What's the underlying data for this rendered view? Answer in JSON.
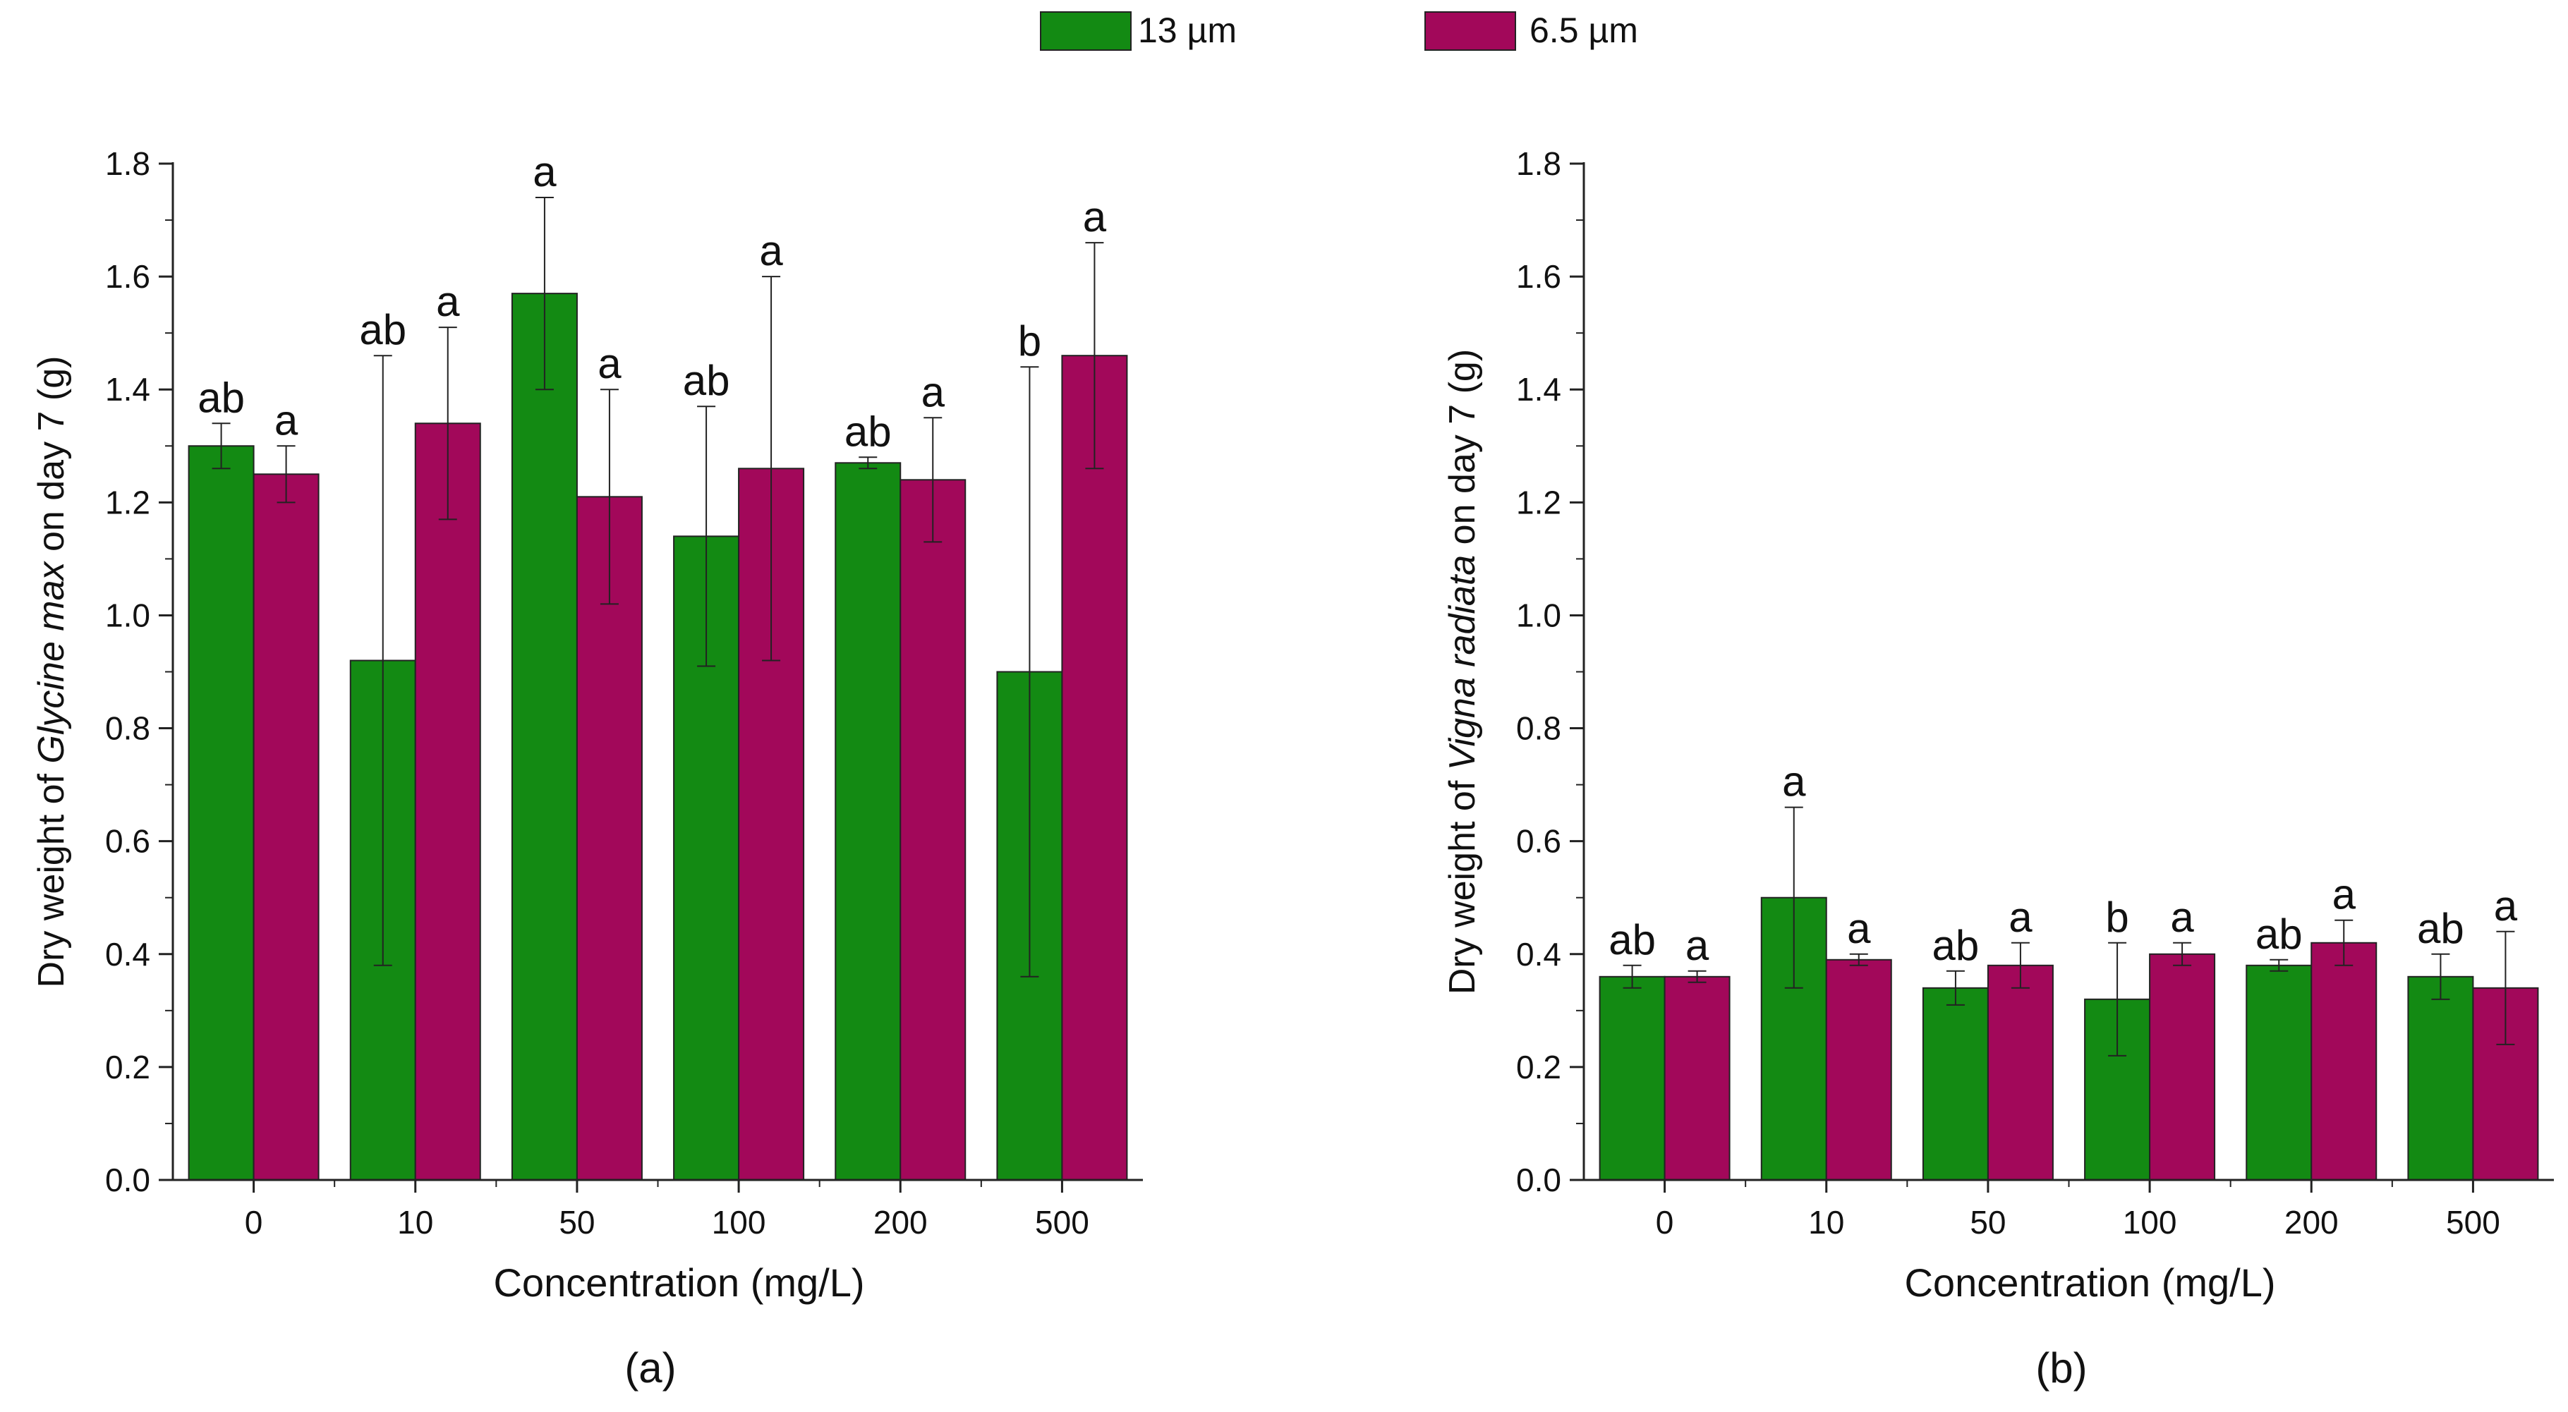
{
  "legend": [
    {
      "label": "13 µm",
      "color": "#138a13"
    },
    {
      "label": "6.5 µm",
      "color": "#a2085a"
    }
  ],
  "chart_data": [
    {
      "type": "bar",
      "panel_label": "(a)",
      "xlabel": "Concentration (mg/L)",
      "ylabel_parts": [
        "Dry weight of ",
        "Glycine max",
        " on day 7 (g)"
      ],
      "ylim": [
        0,
        1.8
      ],
      "yticks": [
        "0.0",
        "0.2",
        "0.4",
        "0.6",
        "0.8",
        "1.0",
        "1.2",
        "1.4",
        "1.6",
        "1.8"
      ],
      "categories": [
        "0",
        "10",
        "50",
        "100",
        "200",
        "500"
      ],
      "series": [
        {
          "name": "13 µm",
          "color": "#138a13",
          "values": [
            1.3,
            0.92,
            1.57,
            1.14,
            1.27,
            0.9
          ],
          "error": [
            0.04,
            0.54,
            0.17,
            0.23,
            0.01,
            0.54
          ],
          "labels": [
            "ab",
            "ab",
            "a",
            "ab",
            "ab",
            "b"
          ]
        },
        {
          "name": "6.5 µm",
          "color": "#a2085a",
          "values": [
            1.25,
            1.34,
            1.21,
            1.26,
            1.24,
            1.46
          ],
          "error": [
            0.05,
            0.17,
            0.19,
            0.34,
            0.11,
            0.2
          ],
          "labels": [
            "a",
            "a",
            "a",
            "a",
            "a",
            "a"
          ]
        }
      ]
    },
    {
      "type": "bar",
      "panel_label": "(b)",
      "xlabel": "Concentration (mg/L)",
      "ylabel_parts": [
        "Dry weight of ",
        "Vigna radiata",
        " on day 7 (g)"
      ],
      "ylim": [
        0,
        1.8
      ],
      "yticks": [
        "0.0",
        "0.2",
        "0.4",
        "0.6",
        "0.8",
        "1.0",
        "1.2",
        "1.4",
        "1.6",
        "1.8"
      ],
      "categories": [
        "0",
        "10",
        "50",
        "100",
        "200",
        "500"
      ],
      "series": [
        {
          "name": "13 µm",
          "color": "#138a13",
          "values": [
            0.36,
            0.5,
            0.34,
            0.32,
            0.38,
            0.36
          ],
          "error": [
            0.02,
            0.16,
            0.03,
            0.1,
            0.01,
            0.04
          ],
          "labels": [
            "ab",
            "a",
            "ab",
            "b",
            "ab",
            "ab"
          ]
        },
        {
          "name": "6.5 µm",
          "color": "#a2085a",
          "values": [
            0.36,
            0.39,
            0.38,
            0.4,
            0.42,
            0.34
          ],
          "error": [
            0.01,
            0.01,
            0.04,
            0.02,
            0.04,
            0.1
          ],
          "labels": [
            "a",
            "a",
            "a",
            "a",
            "a",
            "a"
          ]
        }
      ]
    }
  ]
}
